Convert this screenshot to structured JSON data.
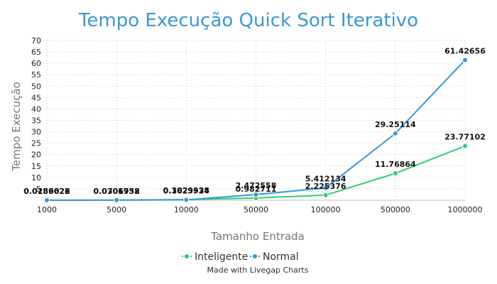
{
  "chart_data": {
    "type": "line",
    "title": "Tempo Execução Quick Sort Iterativo",
    "xlabel": "Tamanho Entrada",
    "ylabel": "Tempo Execução",
    "categories": [
      "1000",
      "5000",
      "10000",
      "50000",
      "100000",
      "500000",
      "1000000"
    ],
    "ylim": [
      0,
      70
    ],
    "yticks": [
      5,
      10,
      15,
      20,
      25,
      30,
      35,
      40,
      45,
      50,
      55,
      60,
      65,
      70
    ],
    "grid": true,
    "legend_position": "bottom-center",
    "series": [
      {
        "name": "Inteligente",
        "color": "#2ecc71",
        "values": [
          0.0289022,
          0.0706758,
          0.3029338,
          0.982711,
          2.225376,
          11.76864,
          23.77102
        ],
        "labels": [
          "0.0289022",
          "0.0706758",
          "0.3029338",
          "0.982711",
          "2.225376",
          "11.76864",
          "23.77102"
        ]
      },
      {
        "name": "Normal",
        "color": "#3498db",
        "values": [
          0.0156626,
          0.0301932,
          0.1623924,
          2.472558,
          5.412134,
          29.25114,
          61.42656
        ],
        "labels": [
          "0.0156626",
          "0.0301932",
          "0.1623924",
          "2.472558",
          "5.412134",
          "29.25114",
          "61.42656"
        ]
      }
    ],
    "credit": "Made with Livegap Charts"
  }
}
